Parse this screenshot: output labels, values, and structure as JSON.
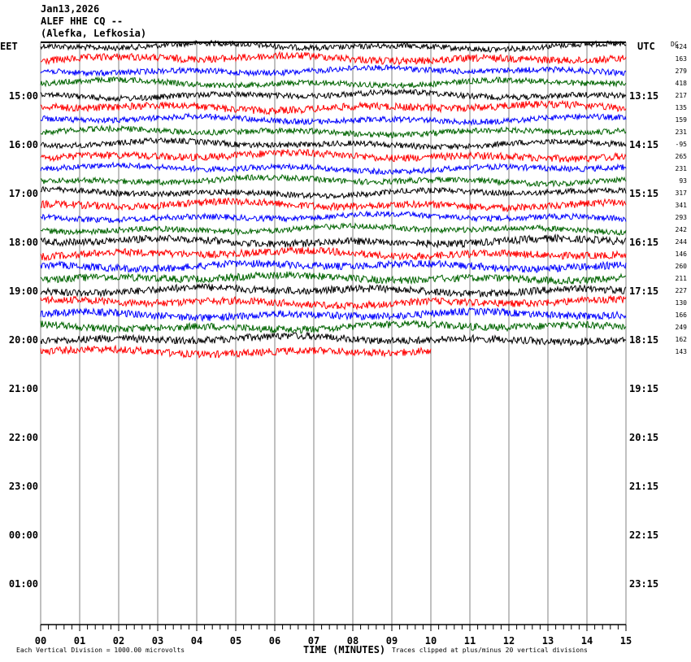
{
  "header": {
    "date": "Jan13,2026",
    "station": "ALEF HHE CQ --",
    "location": "(Alefka, Lefkosia)"
  },
  "chart_data": {
    "type": "line",
    "left_timezone": "EET",
    "right_timezone": "UTC",
    "dc_label": "DC",
    "left_hour_labels": [
      "15:00",
      "16:00",
      "17:00",
      "18:00",
      "19:00",
      "20:00",
      "21:00",
      "22:00",
      "23:00",
      "00:00",
      "01:00"
    ],
    "right_hour_labels": [
      "13:15",
      "14:15",
      "15:15",
      "16:15",
      "17:15",
      "18:15",
      "19:15",
      "20:15",
      "21:15",
      "22:15",
      "23:15"
    ],
    "dc_offsets": [
      424,
      163,
      279,
      418,
      217,
      135,
      159,
      231,
      -95,
      265,
      231,
      93,
      317,
      341,
      293,
      242,
      244,
      146,
      260,
      211,
      227,
      130,
      166,
      249,
      162,
      143
    ],
    "trace_colors": [
      "#000000",
      "#ff0000",
      "#0000ff",
      "#006400"
    ],
    "last_trace_end_minute": 10,
    "x_ticks": [
      "00",
      "01",
      "02",
      "03",
      "04",
      "05",
      "06",
      "07",
      "08",
      "09",
      "10",
      "11",
      "12",
      "13",
      "14",
      "15"
    ],
    "xlim": [
      0,
      15
    ],
    "xlabel": "TIME (MINUTES)",
    "scale_note": "Each Vertical Division = 1000.00 microvolts",
    "clip_note": "Traces clipped at plus/minus 20 vertical divisions",
    "grid": true
  }
}
